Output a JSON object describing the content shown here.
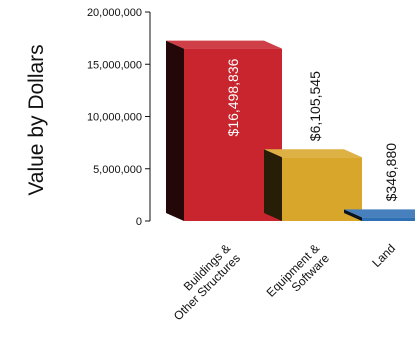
{
  "chart_data": {
    "type": "bar",
    "style": "3d",
    "title": "",
    "xlabel": "",
    "ylabel": "Value by Dollars",
    "ylim": [
      0,
      20000000
    ],
    "yticks": [
      "0",
      "5,000,000",
      "10,000,000",
      "15,000,000",
      "20,000,000"
    ],
    "ytick_values": [
      0,
      5000000,
      10000000,
      15000000,
      20000000
    ],
    "grid": false,
    "categories": [
      [
        "Buildings &",
        "Other Structures"
      ],
      [
        "Equipment &",
        "Software"
      ],
      [
        "Land"
      ]
    ],
    "values": [
      16498836,
      6105545,
      346880
    ],
    "data_labels": [
      "$16,498,836",
      "$6,105,545",
      "$346,880"
    ],
    "colors": {
      "bars": [
        "#c8252f",
        "#d9a62c",
        "#2f6fb4"
      ],
      "text_in_bar": "#ffffff",
      "text_default": "#111111"
    }
  }
}
